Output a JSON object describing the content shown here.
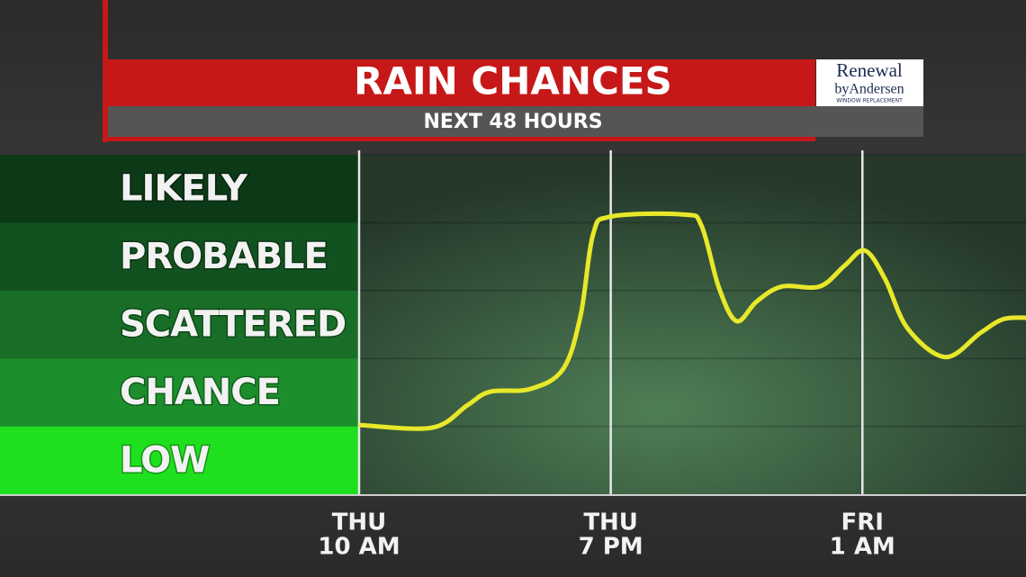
{
  "chart_data": {
    "type": "line",
    "title": "RAIN CHANCES",
    "subtitle": "NEXT 48 HOURS",
    "sponsor": [
      "Renewal",
      "byAndersen",
      "WINDOW REPLACEMENT"
    ],
    "x": [
      0,
      0.29,
      0.43,
      0.52,
      0.68,
      0.81,
      0.88,
      0.93,
      1.0,
      1.29,
      1.36,
      1.43,
      1.5,
      1.58,
      1.68,
      1.83,
      1.93,
      2.01,
      2.09,
      2.18,
      2.33,
      2.47,
      2.56,
      2.65
    ],
    "series": [
      {
        "color": "#e8e82a",
        "values": [
          1.02,
          0.98,
          1.31,
          1.51,
          1.55,
          1.84,
          2.63,
          3.83,
          4.09,
          4.12,
          3.96,
          3.04,
          2.55,
          2.84,
          3.06,
          3.06,
          3.37,
          3.59,
          3.17,
          2.44,
          2.02,
          2.38,
          2.58,
          2.6
        ]
      }
    ],
    "xlim": [
      0,
      2.65
    ],
    "xticks": [
      {
        "value": 0,
        "label": [
          "THU",
          "10 AM"
        ]
      },
      {
        "value": 1,
        "label": [
          "THU",
          "7 PM"
        ]
      },
      {
        "value": 2,
        "label": [
          "FRI",
          "1 AM"
        ]
      }
    ],
    "ylim": [
      0,
      5
    ],
    "yticks": [
      {
        "value": 0.5,
        "label": "LOW"
      },
      {
        "value": 1.5,
        "label": "CHANCE"
      },
      {
        "value": 2.5,
        "label": "SCATTERED"
      },
      {
        "value": 3.5,
        "label": "PROBABLE"
      },
      {
        "value": 4.5,
        "label": "LIKELY"
      }
    ],
    "band_colors": [
      "#1fe01f",
      "#1c8f2c",
      "#186e27",
      "#125220",
      "#0c3a16"
    ],
    "grid": true
  }
}
